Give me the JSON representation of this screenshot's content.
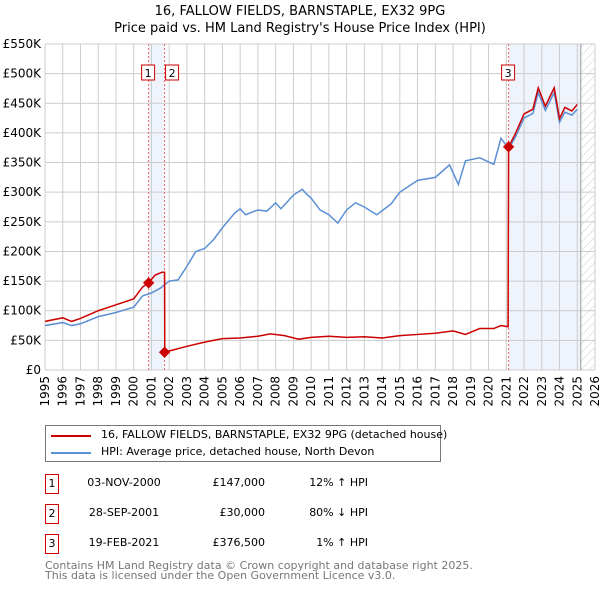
{
  "chart_data": {
    "type": "line",
    "title": "16, FALLOW FIELDS, BARNSTAPLE, EX32 9PG",
    "subtitle": "Price paid vs. HM Land Registry's House Price Index (HPI)",
    "xlim": [
      1995,
      2026
    ],
    "ylim": [
      0,
      550000
    ],
    "yticks": [
      0,
      50000,
      100000,
      150000,
      200000,
      250000,
      300000,
      350000,
      400000,
      450000,
      500000,
      550000
    ],
    "ytick_labels": [
      "£0",
      "£50K",
      "£100K",
      "£150K",
      "£200K",
      "£250K",
      "£300K",
      "£350K",
      "£400K",
      "£450K",
      "£500K",
      "£550K"
    ],
    "xticks": [
      "1995",
      "1996",
      "1997",
      "1998",
      "1999",
      "2000",
      "2001",
      "2002",
      "2003",
      "2004",
      "2005",
      "2006",
      "2007",
      "2008",
      "2009",
      "2010",
      "2011",
      "2012",
      "2013",
      "2014",
      "2015",
      "2016",
      "2017",
      "2018",
      "2019",
      "2020",
      "2021",
      "2022",
      "2023",
      "2024",
      "2025",
      "2026"
    ],
    "grid": true,
    "colors": {
      "property": "#cc0000",
      "hpi": "#5b8fd4",
      "shade": "#eef3fc"
    },
    "series": [
      {
        "name": "16, FALLOW FIELDS, BARNSTAPLE, EX32 9PG (detached house)",
        "x": [
          1995,
          1996,
          1996.5,
          1997,
          1998,
          1999,
          2000,
          2000.5,
          2000.84,
          2001.2,
          2001.6,
          2001.74,
          2001.75,
          2002,
          2003,
          2004,
          2005,
          2006,
          2007,
          2007.7,
          2008.5,
          2009.3,
          2010,
          2011,
          2012,
          2013,
          2014,
          2015,
          2016,
          2017,
          2018,
          2018.7,
          2019.5,
          2020.3,
          2020.7,
          2021.1,
          2021.13,
          2021.5,
          2022,
          2022.5,
          2022.8,
          2023.2,
          2023.7,
          2024,
          2024.3,
          2024.7,
          2025
        ],
        "y": [
          82000,
          88000,
          82000,
          87000,
          100000,
          110000,
          120000,
          140000,
          147000,
          160000,
          165000,
          165000,
          30000,
          32000,
          40000,
          47000,
          53000,
          54000,
          57000,
          61000,
          58000,
          52000,
          55000,
          57000,
          55000,
          56000,
          54000,
          58000,
          60000,
          62000,
          66000,
          60000,
          70000,
          70000,
          75000,
          73000,
          376500,
          398000,
          432000,
          440000,
          476000,
          445000,
          476000,
          424000,
          443000,
          437000,
          448000
        ]
      },
      {
        "name": "HPI: Average price, detached house, North Devon",
        "x": [
          1995,
          1996,
          1996.5,
          1997,
          1998,
          1999,
          2000,
          2000.5,
          2001,
          2001.5,
          2002,
          2002.5,
          2003,
          2003.5,
          2004,
          2004.5,
          2005,
          2005.7,
          2006,
          2006.3,
          2007,
          2007.5,
          2008,
          2008.3,
          2009,
          2009.5,
          2009.7,
          2010,
          2010.5,
          2011,
          2011.5,
          2012,
          2012.5,
          2013,
          2013.7,
          2014.5,
          2015,
          2016,
          2017,
          2017.8,
          2018.3,
          2018.7,
          2019.5,
          2020.3,
          2020.7,
          2021.13,
          2021.5,
          2022,
          2022.5,
          2022.8,
          2023.2,
          2023.7,
          2024,
          2024.3,
          2024.7,
          2025
        ],
        "y": [
          75000,
          80000,
          75000,
          78000,
          90000,
          97000,
          106000,
          125000,
          130000,
          138000,
          150000,
          152000,
          175000,
          200000,
          205000,
          220000,
          240000,
          265000,
          272000,
          262000,
          270000,
          268000,
          282000,
          272000,
          295000,
          305000,
          298000,
          290000,
          270000,
          262000,
          248000,
          270000,
          282000,
          275000,
          262000,
          280000,
          300000,
          320000,
          325000,
          346000,
          313000,
          353000,
          358000,
          347000,
          391000,
          373000,
          392000,
          425000,
          433000,
          468000,
          438000,
          468000,
          418000,
          435000,
          430000,
          440000
        ]
      }
    ],
    "sales": [
      {
        "label": "1",
        "x": 2000.84,
        "price": 147000,
        "date": "03-NOV-2000",
        "price_text": "£147,000",
        "hpi_text": "12% ↑ HPI"
      },
      {
        "label": "2",
        "x": 2001.74,
        "price": 30000,
        "date": "28-SEP-2001",
        "price_text": "£30,000",
        "hpi_text": "80% ↓ HPI"
      },
      {
        "label": "3",
        "x": 2021.13,
        "price": 376500,
        "date": "19-FEB-2021",
        "price_text": "£376,500",
        "hpi_text": "1% ↑ HPI"
      }
    ],
    "shaded": [
      [
        2000.84,
        2001.74
      ],
      [
        2021.13,
        2025.2
      ]
    ],
    "hatched": [
      2025.2,
      2026
    ]
  },
  "footer": [
    "Contains HM Land Registry data © Crown copyright and database right 2025.",
    "This data is licensed under the Open Government Licence v3.0."
  ]
}
